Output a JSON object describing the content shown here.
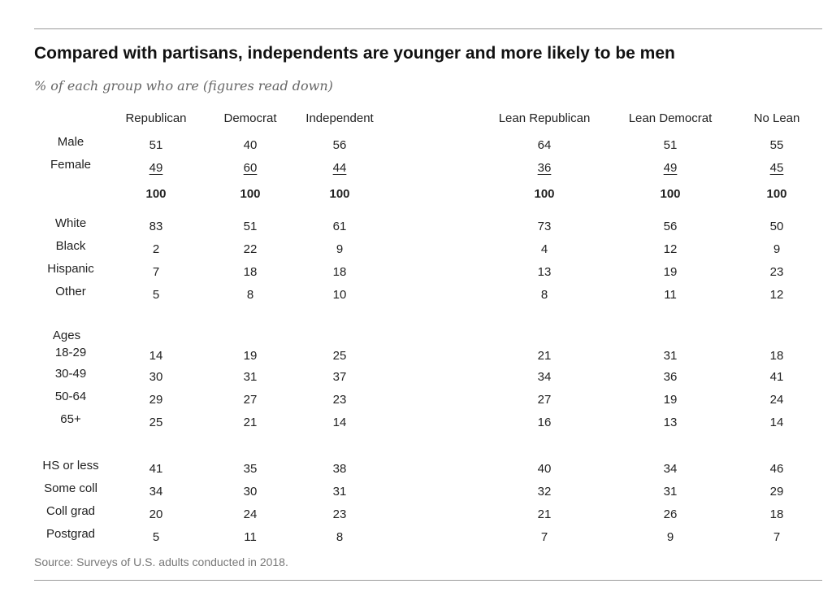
{
  "chart_data": {
    "type": "table",
    "title": "Compared with partisans, independents are younger and more likely to be men",
    "subtitle": "% of each group who are (figures read down)",
    "columns": [
      "Republican",
      "Democrat",
      "Independent",
      "Lean Republican",
      "Lean Democrat",
      "No Lean"
    ],
    "groups": [
      {
        "heading": "",
        "rows": [
          {
            "label": "Male",
            "values": [
              "51",
              "40",
              "56",
              "64",
              "51",
              "55"
            ]
          },
          {
            "label": "Female",
            "values": [
              "49",
              "60",
              "44",
              "36",
              "49",
              "45"
            ],
            "underline": true
          },
          {
            "label": "",
            "values": [
              "100",
              "100",
              "100",
              "100",
              "100",
              "100"
            ],
            "total": true
          }
        ]
      },
      {
        "heading": "",
        "rows": [
          {
            "label": "White",
            "values": [
              "83",
              "51",
              "61",
              "73",
              "56",
              "50"
            ]
          },
          {
            "label": "Black",
            "values": [
              "2",
              "22",
              "9",
              "4",
              "12",
              "9"
            ]
          },
          {
            "label": "Hispanic",
            "values": [
              "7",
              "18",
              "18",
              "13",
              "19",
              "23"
            ]
          },
          {
            "label": "Other",
            "values": [
              "5",
              "8",
              "10",
              "8",
              "11",
              "12"
            ]
          }
        ]
      },
      {
        "heading": "Ages",
        "rows": [
          {
            "label": "18-29",
            "values": [
              "14",
              "19",
              "25",
              "21",
              "31",
              "18"
            ]
          },
          {
            "label": "30-49",
            "values": [
              "30",
              "31",
              "37",
              "34",
              "36",
              "41"
            ]
          },
          {
            "label": "50-64",
            "values": [
              "29",
              "27",
              "23",
              "27",
              "19",
              "24"
            ]
          },
          {
            "label": "65+",
            "values": [
              "25",
              "21",
              "14",
              "16",
              "13",
              "14"
            ]
          }
        ]
      },
      {
        "heading": "",
        "rows": [
          {
            "label": "HS or less",
            "values": [
              "41",
              "35",
              "38",
              "40",
              "34",
              "46"
            ]
          },
          {
            "label": "Some coll",
            "values": [
              "34",
              "30",
              "31",
              "32",
              "31",
              "29"
            ]
          },
          {
            "label": "Coll grad",
            "values": [
              "20",
              "24",
              "23",
              "21",
              "26",
              "18"
            ]
          },
          {
            "label": "Postgrad",
            "values": [
              "5",
              "11",
              "8",
              "7",
              "9",
              "7"
            ]
          }
        ]
      }
    ],
    "source": "Source: Surveys of U.S. adults conducted in 2018."
  }
}
